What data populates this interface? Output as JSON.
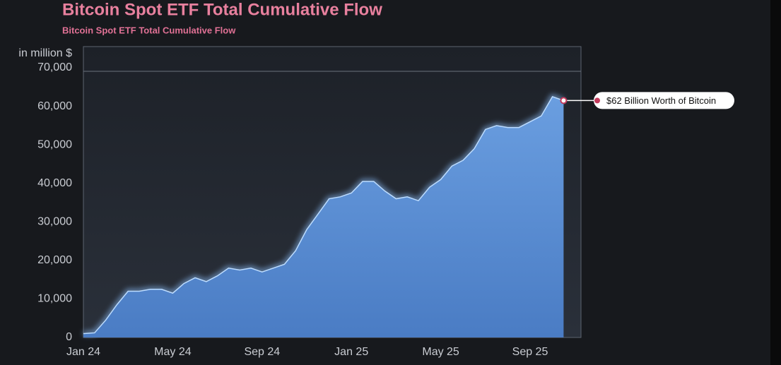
{
  "chart_data": {
    "type": "area",
    "title": "Bitcoin Spot ETF Total Cumulative Flow",
    "subtitle": "Bitcoin Spot ETF Total Cumulative Flow",
    "y_label": "in million $",
    "annotation": "$62 Billion Worth of Bitcoin",
    "categories": [
      "Jan 24",
      null,
      null,
      null,
      null,
      null,
      null,
      null,
      "May 24",
      null,
      null,
      null,
      null,
      null,
      null,
      null,
      "Sep 24",
      null,
      null,
      null,
      null,
      null,
      null,
      null,
      "Jan 25",
      null,
      null,
      null,
      null,
      null,
      null,
      null,
      "May 25",
      null,
      null,
      null,
      null,
      null,
      null,
      null,
      "Sep 25",
      null,
      null,
      null
    ],
    "values": [
      1000,
      1200,
      4500,
      8500,
      12000,
      12000,
      12500,
      12500,
      11500,
      14000,
      15500,
      14500,
      16000,
      18000,
      17500,
      18000,
      17000,
      18000,
      19000,
      22500,
      28000,
      32000,
      36000,
      36500,
      37500,
      40500,
      40500,
      38000,
      36000,
      36500,
      35500,
      39000,
      41000,
      44500,
      46000,
      49000,
      54000,
      55000,
      54500,
      54500,
      56000,
      57500,
      62500,
      61500
    ],
    "color": "#5a8fd6",
    "ylim": [
      0,
      75500
    ],
    "yticks": [
      0,
      {
        "value": 10000,
        "label": "10,000"
      },
      {
        "value": 20000,
        "label": "20,000"
      },
      {
        "value": 30000,
        "label": "30,000"
      },
      {
        "value": 40000,
        "label": "40,000"
      },
      {
        "value": 50000,
        "label": "50,000"
      },
      {
        "value": 60000,
        "label": "60,000"
      },
      {
        "value": 70000,
        "label": "70,000"
      }
    ]
  }
}
